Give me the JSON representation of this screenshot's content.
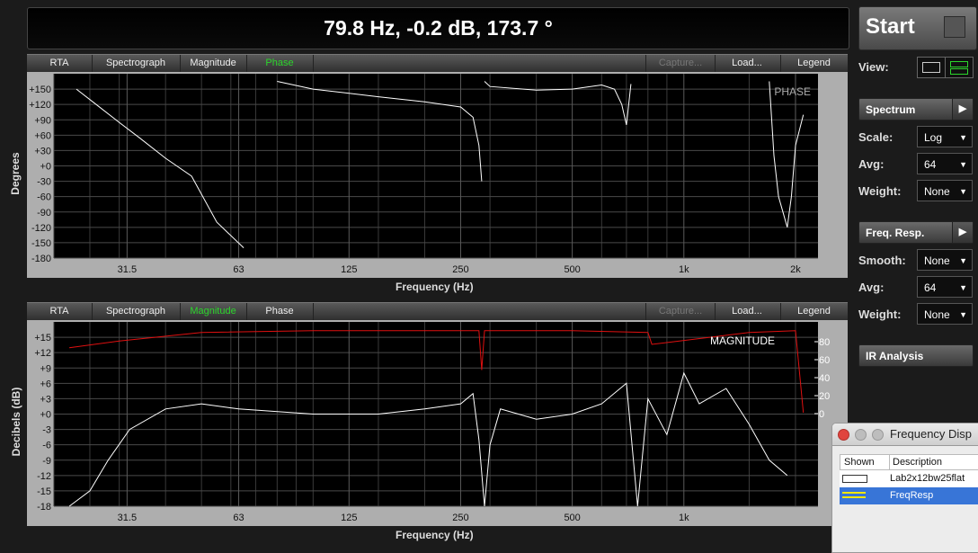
{
  "readout": "79.8 Hz, -0.2 dB, 173.7 °",
  "tabs_top": [
    "RTA",
    "Spectrograph",
    "Magnitude",
    "Phase"
  ],
  "tabs_top_active": "Phase",
  "tabs_bottom": [
    "RTA",
    "Spectrograph",
    "Magnitude",
    "Phase"
  ],
  "tabs_bottom_active": "Magnitude",
  "tab_right": {
    "capture": "Capture...",
    "load": "Load...",
    "legend": "Legend"
  },
  "sidebar": {
    "start_label": "Start",
    "view_label": "View:",
    "spectrum_label": "Spectrum",
    "scale_label": "Scale:",
    "scale_value": "Log",
    "avg_label": "Avg:",
    "avg_value": "64",
    "weight_label": "Weight:",
    "weight_value": "None",
    "freq_resp_label": "Freq. Resp.",
    "smooth_label": "Smooth:",
    "smooth_value": "None",
    "avg2_label": "Avg:",
    "avg2_value": "64",
    "weight2_label": "Weight:",
    "weight2_value": "None",
    "ir_label": "IR Analysis"
  },
  "freq_display": {
    "title": "Frequency Disp",
    "col_shown": "Shown",
    "col_desc": "Description",
    "rows": [
      {
        "desc": "Lab2x12bw25flat",
        "selected": false
      },
      {
        "desc": "FreqResp",
        "selected": true
      }
    ]
  },
  "colors": {
    "accent_green": "#2cd52c",
    "coherence_red": "#e01010",
    "selected_row": "#3875d7",
    "trace": "#ffffff"
  },
  "chart_data": [
    {
      "type": "line",
      "name_tag": "PHASE",
      "xlabel": "Frequency (Hz)",
      "ylabel": "Degrees",
      "x_scale": "log",
      "xticks": [
        "31.5",
        "63",
        "125",
        "250",
        "500",
        "1k",
        "2k"
      ],
      "yticks": [
        "+150",
        "+120",
        "+90",
        "+60",
        "+30",
        "+0",
        "-30",
        "-60",
        "-90",
        "-120",
        "-150",
        "-180"
      ],
      "ylim": [
        -180,
        180
      ],
      "series": [
        {
          "x": [
            23,
            26,
            30,
            34,
            40,
            47,
            55,
            65
          ],
          "y": [
            150,
            120,
            85,
            55,
            15,
            -20,
            -110,
            -160
          ]
        },
        {
          "x": [
            80,
            100,
            150,
            200,
            250,
            270,
            280,
            285
          ],
          "y": [
            165,
            150,
            135,
            125,
            115,
            95,
            40,
            -30
          ]
        },
        {
          "x": [
            290,
            300,
            400,
            500,
            600,
            650,
            680,
            700,
            720
          ],
          "y": [
            165,
            155,
            148,
            150,
            158,
            150,
            120,
            80,
            160
          ]
        },
        {
          "x": [
            1700,
            1750,
            1800,
            1850,
            1900,
            1950,
            2000,
            2100
          ],
          "y": [
            165,
            20,
            -60,
            -90,
            -120,
            -60,
            40,
            100
          ]
        }
      ],
      "grid": true
    },
    {
      "type": "line",
      "name_tag": "MAGNITUDE",
      "xlabel": "Frequency (Hz)",
      "ylabel": "Decibels (dB)",
      "x_scale": "log",
      "xticks": [
        "31.5",
        "63",
        "125",
        "250",
        "500",
        "1k"
      ],
      "yticks": [
        "+15",
        "+12",
        "+9",
        "+6",
        "+3",
        "+0",
        "-3",
        "-6",
        "-9",
        "-12",
        "-15",
        "-18"
      ],
      "ylim": [
        -18,
        18
      ],
      "y2ticks": [
        "80",
        "60",
        "40",
        "20",
        "0"
      ],
      "series": [
        {
          "x": [
            22,
            25,
            28,
            32,
            40,
            50,
            63,
            100,
            150,
            200,
            250,
            270,
            280,
            290,
            300,
            320,
            400,
            500,
            600,
            700,
            750,
            800,
            900,
            1000,
            1100,
            1300,
            1500,
            1700,
            1900
          ],
          "y": [
            -18,
            -15,
            -9,
            -3,
            1,
            2,
            1,
            0,
            0,
            1,
            2,
            4,
            -5,
            -18,
            -6,
            1,
            -1,
            0,
            2,
            6,
            -18,
            3,
            -4,
            8,
            2,
            5,
            -2,
            -9,
            -12
          ]
        }
      ],
      "coherence": {
        "x": [
          22,
          30,
          50,
          100,
          200,
          280,
          285,
          290,
          500,
          800,
          820,
          1500,
          2000,
          2100
        ],
        "y": [
          88,
          92,
          97,
          98,
          98,
          98,
          75,
          98,
          98,
          97,
          90,
          97,
          98,
          50
        ]
      },
      "grid": true
    }
  ]
}
